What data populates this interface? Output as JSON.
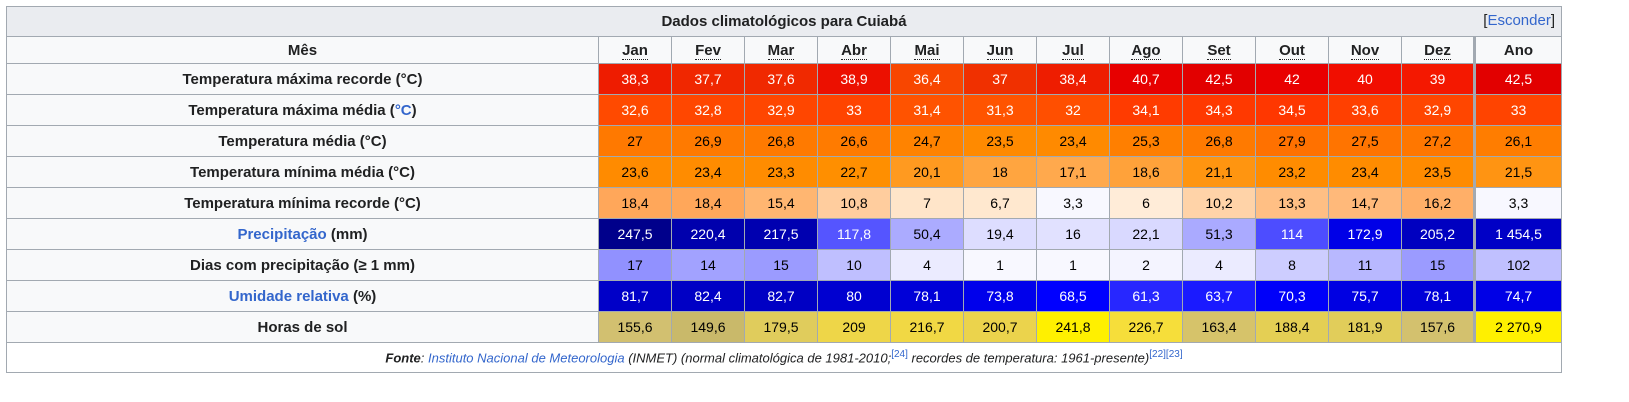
{
  "caption": {
    "title": "Dados climatológicos para Cuiabá",
    "hide_open": "[",
    "hide_label": "Esconder",
    "hide_close": "]"
  },
  "header": {
    "label": "Mês",
    "months": [
      "Jan",
      "Fev",
      "Mar",
      "Abr",
      "Mai",
      "Jun",
      "Jul",
      "Ago",
      "Set",
      "Out",
      "Nov",
      "Dez"
    ],
    "year": "Ano"
  },
  "rows": [
    {
      "label_pre": "Temperatura máxima recorde (°C)",
      "label_link": "",
      "label_post": "",
      "values": [
        "38,3",
        "37,7",
        "37,6",
        "38,9",
        "36,4",
        "37",
        "38,4",
        "40,7",
        "42,5",
        "42",
        "40",
        "39",
        "42,5"
      ],
      "bg": [
        "#ee1c00",
        "#f02700",
        "#f02900",
        "#ec1000",
        "#f84600",
        "#f03000",
        "#ee1d00",
        "#e70000",
        "#e20000",
        "#e90000",
        "#f10e00",
        "#f41800",
        "#e20000"
      ],
      "fg": [
        "#ffffff",
        "#ffffff",
        "#ffffff",
        "#ffffff",
        "#ffffff",
        "#ffffff",
        "#ffffff",
        "#ffffff",
        "#ffffff",
        "#ffffff",
        "#ffffff",
        "#ffffff",
        "#ffffff"
      ]
    },
    {
      "label_pre": "Temperatura máxima média (",
      "label_link": "°C",
      "label_post": ")",
      "values": [
        "32,6",
        "32,8",
        "32,9",
        "33",
        "31,4",
        "31,3",
        "32",
        "34,1",
        "34,3",
        "34,5",
        "33,6",
        "32,9",
        "33"
      ],
      "bg": [
        "#ff4a00",
        "#ff4700",
        "#ff4600",
        "#ff4400",
        "#ff5300",
        "#ff5400",
        "#ff4f00",
        "#ff3b00",
        "#ff3900",
        "#ff3700",
        "#ff4000",
        "#ff4600",
        "#ff4400"
      ],
      "fg": [
        "#ffffff",
        "#ffffff",
        "#ffffff",
        "#ffffff",
        "#ffffff",
        "#ffffff",
        "#ffffff",
        "#ffffff",
        "#ffffff",
        "#ffffff",
        "#ffffff",
        "#ffffff",
        "#ffffff"
      ]
    },
    {
      "label_pre": "Temperatura média (°C)",
      "label_link": "",
      "label_post": "",
      "values": [
        "27",
        "26,9",
        "26,8",
        "26,6",
        "24,7",
        "23,5",
        "23,4",
        "25,3",
        "26,8",
        "27,9",
        "27,5",
        "27,2",
        "26,1"
      ],
      "bg": [
        "#ff7900",
        "#ff7a00",
        "#ff7a00",
        "#ff7b00",
        "#ff8300",
        "#ff8a00",
        "#ff8a00",
        "#ff7f00",
        "#ff7a00",
        "#ff7100",
        "#ff7400",
        "#ff7700",
        "#ff7d00"
      ],
      "fg": [
        "#000000",
        "#000000",
        "#000000",
        "#000000",
        "#000000",
        "#000000",
        "#000000",
        "#000000",
        "#000000",
        "#000000",
        "#000000",
        "#000000",
        "#000000"
      ]
    },
    {
      "label_pre": "Temperatura mínima média (°C)",
      "label_link": "",
      "label_post": "",
      "values": [
        "23,6",
        "23,4",
        "23,3",
        "22,7",
        "20,1",
        "18",
        "17,1",
        "18,6",
        "21,1",
        "23,2",
        "23,4",
        "23,5",
        "21,5"
      ],
      "bg": [
        "#ff8b00",
        "#ff8c00",
        "#ff8c00",
        "#ff8f00",
        "#ff9a20",
        "#ffa540",
        "#ffa94d",
        "#ffa23a",
        "#ff9510",
        "#ff8c00",
        "#ff8c00",
        "#ff8b00",
        "#ff9412"
      ],
      "fg": [
        "#000000",
        "#000000",
        "#000000",
        "#000000",
        "#000000",
        "#000000",
        "#000000",
        "#000000",
        "#000000",
        "#000000",
        "#000000",
        "#000000",
        "#000000"
      ]
    },
    {
      "label_pre": "Temperatura mínima recorde (°C)",
      "label_link": "",
      "label_post": "",
      "values": [
        "18,4",
        "18,4",
        "15,4",
        "10,8",
        "7",
        "6,7",
        "3,3",
        "6",
        "10,2",
        "13,3",
        "14,7",
        "16,2",
        "3,3"
      ],
      "bg": [
        "#ffa75a",
        "#ffa75a",
        "#ffb671",
        "#ffcd9e",
        "#ffe5c9",
        "#ffe8cf",
        "#f8f8ff",
        "#ffecd8",
        "#ffd3a8",
        "#ffbf84",
        "#ffb97a",
        "#ffaf68",
        "#f8f8ff"
      ],
      "fg": [
        "#000000",
        "#000000",
        "#000000",
        "#000000",
        "#000000",
        "#000000",
        "#000000",
        "#000000",
        "#000000",
        "#000000",
        "#000000",
        "#000000",
        "#000000"
      ]
    },
    {
      "label_pre": "",
      "label_link": "Precipitação",
      "label_post": " (mm)",
      "values": [
        "247,5",
        "220,4",
        "217,5",
        "117,8",
        "50,4",
        "19,4",
        "16",
        "22,1",
        "51,3",
        "114",
        "172,9",
        "205,2",
        "1 454,5"
      ],
      "bg": [
        "#00008b",
        "#0000ad",
        "#0000b0",
        "#5555ff",
        "#ababff",
        "#ddddff",
        "#e1e1ff",
        "#d9d9ff",
        "#aaaaff",
        "#4d4dff",
        "#0000e7",
        "#0000c0",
        "#0000c6"
      ],
      "fg": [
        "#ffffff",
        "#ffffff",
        "#ffffff",
        "#ffffff",
        "#000000",
        "#000000",
        "#000000",
        "#000000",
        "#000000",
        "#ffffff",
        "#ffffff",
        "#ffffff",
        "#ffffff"
      ]
    },
    {
      "label_pre": "Dias com precipitação (≥ 1 mm)",
      "label_link": "",
      "label_post": "",
      "values": [
        "17",
        "14",
        "15",
        "10",
        "4",
        "1",
        "1",
        "2",
        "4",
        "8",
        "11",
        "15",
        "102"
      ],
      "bg": [
        "#9191ff",
        "#a2a2ff",
        "#9b9bff",
        "#bfbfff",
        "#ebebff",
        "#f8f8ff",
        "#f8f8ff",
        "#f4f4ff",
        "#ebebff",
        "#cdcdff",
        "#b8b8ff",
        "#9b9bff",
        "#c0c0ff"
      ],
      "fg": [
        "#000000",
        "#000000",
        "#000000",
        "#000000",
        "#000000",
        "#000000",
        "#000000",
        "#000000",
        "#000000",
        "#000000",
        "#000000",
        "#000000",
        "#000000"
      ]
    },
    {
      "label_pre": "",
      "label_link": "Umidade relativa",
      "label_post": " (%)",
      "values": [
        "81,7",
        "82,4",
        "82,7",
        "80",
        "78,1",
        "73,8",
        "68,5",
        "61,3",
        "63,7",
        "70,3",
        "75,7",
        "78,1",
        "74,7"
      ],
      "bg": [
        "#0000c8",
        "#0000c5",
        "#0000c4",
        "#0000d0",
        "#0000d8",
        "#0000eb",
        "#0000ff",
        "#2727ff",
        "#1a1aff",
        "#0000f9",
        "#0000e2",
        "#0000d8",
        "#0000e6"
      ],
      "fg": [
        "#ffffff",
        "#ffffff",
        "#ffffff",
        "#ffffff",
        "#ffffff",
        "#ffffff",
        "#ffffff",
        "#ffffff",
        "#ffffff",
        "#ffffff",
        "#ffffff",
        "#ffffff",
        "#ffffff"
      ]
    },
    {
      "label_pre": "Horas de sol",
      "label_link": "",
      "label_post": "",
      "values": [
        "155,6",
        "149,6",
        "179,5",
        "209",
        "216,7",
        "200,7",
        "241,8",
        "226,7",
        "163,4",
        "188,4",
        "181,9",
        "157,6",
        "2 270,9"
      ],
      "bg": [
        "#d2c070",
        "#c9b96a",
        "#e0cc5c",
        "#eed648",
        "#f1d844",
        "#ebd34c",
        "#fff000",
        "#f6de3a",
        "#d6c36a",
        "#e4cf54",
        "#e1cd5a",
        "#d3c16e",
        "#fff000"
      ],
      "fg": [
        "#000000",
        "#000000",
        "#000000",
        "#000000",
        "#000000",
        "#000000",
        "#000000",
        "#000000",
        "#000000",
        "#000000",
        "#000000",
        "#000000",
        "#000000"
      ]
    }
  ],
  "source": {
    "fonte_label": "Fonte",
    "colon": ": ",
    "institute_link": "Instituto Nacional de Meteorologia",
    "mid_text": " (INMET) (normal climatológica de 1981-2010;",
    "ref1": "[24]",
    "end_text": " recordes de temperatura: 1961-presente)",
    "ref2": "[22]",
    "ref3": "[23]"
  }
}
